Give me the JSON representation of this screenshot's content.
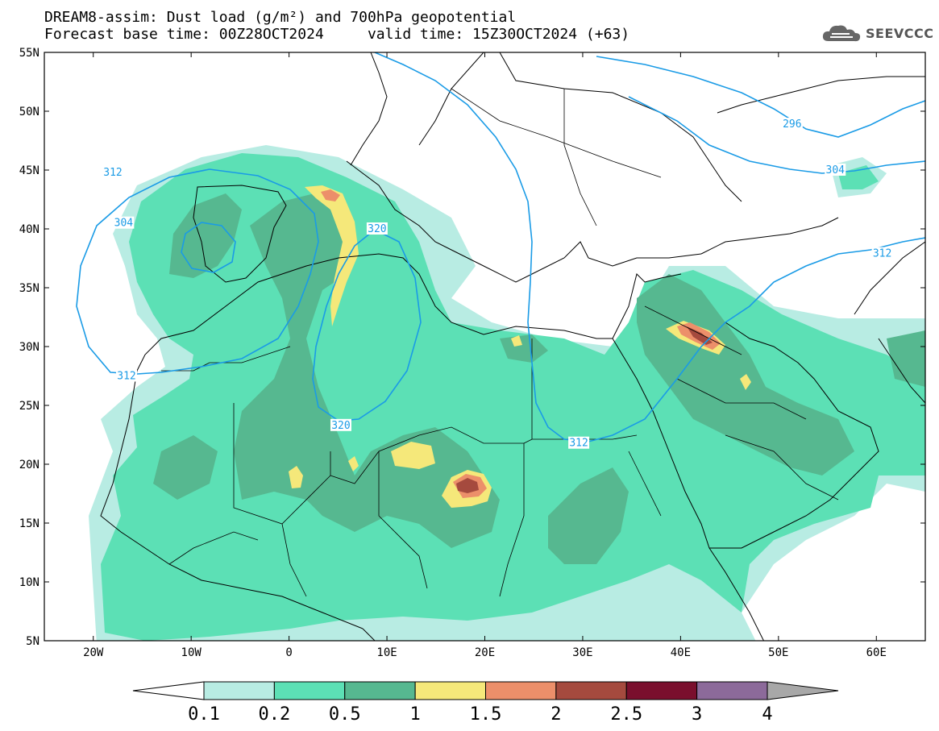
{
  "title": {
    "line1": "DREAM8-assim: Dust load (g/m²) and 700hPa geopotential",
    "line2": "Forecast base time: 00Z28OCT2024     valid time: 15Z30OCT2024 (+63)"
  },
  "logo": {
    "icon": "cloud-icon",
    "text": "SEEVCCC"
  },
  "map": {
    "lon_range": [
      -25,
      65
    ],
    "lat_range": [
      5,
      55
    ],
    "lat_ticks": [
      {
        "value": 55,
        "label": "55N"
      },
      {
        "value": 50,
        "label": "50N"
      },
      {
        "value": 45,
        "label": "45N"
      },
      {
        "value": 40,
        "label": "40N"
      },
      {
        "value": 35,
        "label": "35N"
      },
      {
        "value": 30,
        "label": "30N"
      },
      {
        "value": 25,
        "label": "25N"
      },
      {
        "value": 20,
        "label": "20N"
      },
      {
        "value": 15,
        "label": "15N"
      },
      {
        "value": 10,
        "label": "10N"
      },
      {
        "value": 5,
        "label": "5N"
      }
    ],
    "lon_ticks": [
      {
        "value": -20,
        "label": "20W"
      },
      {
        "value": -10,
        "label": "10W"
      },
      {
        "value": 0,
        "label": "0"
      },
      {
        "value": 10,
        "label": "10E"
      },
      {
        "value": 20,
        "label": "20E"
      },
      {
        "value": 30,
        "label": "30E"
      },
      {
        "value": 40,
        "label": "40E"
      },
      {
        "value": 50,
        "label": "50E"
      },
      {
        "value": 60,
        "label": "60E"
      }
    ],
    "contour_color": "#1a9be6",
    "contour_labels": [
      {
        "text": "312",
        "lon": -18,
        "lat": 44.8
      },
      {
        "text": "304",
        "lon": -16.9,
        "lat": 40.5
      },
      {
        "text": "320",
        "lon": 9.0,
        "lat": 40.0
      },
      {
        "text": "312",
        "lon": -16.6,
        "lat": 27.5
      },
      {
        "text": "320",
        "lon": 5.3,
        "lat": 23.3
      },
      {
        "text": "312",
        "lon": 29.6,
        "lat": 21.8
      },
      {
        "text": "296",
        "lon": 51.4,
        "lat": 48.9
      },
      {
        "text": "304",
        "lon": 55.8,
        "lat": 45.0
      },
      {
        "text": "312",
        "lon": 60.6,
        "lat": 37.9
      }
    ]
  },
  "colorbar": {
    "colors": [
      "#ffffff",
      "#b8ece3",
      "#5ce0b5",
      "#56b890",
      "#f5e87a",
      "#ec8f6a",
      "#a54a3e",
      "#7a0f2d",
      "#8c6a9a",
      "#a8a8a8"
    ],
    "labels": [
      "0.1",
      "0.2",
      "0.5",
      "1",
      "1.5",
      "2",
      "2.5",
      "3",
      "4"
    ]
  }
}
